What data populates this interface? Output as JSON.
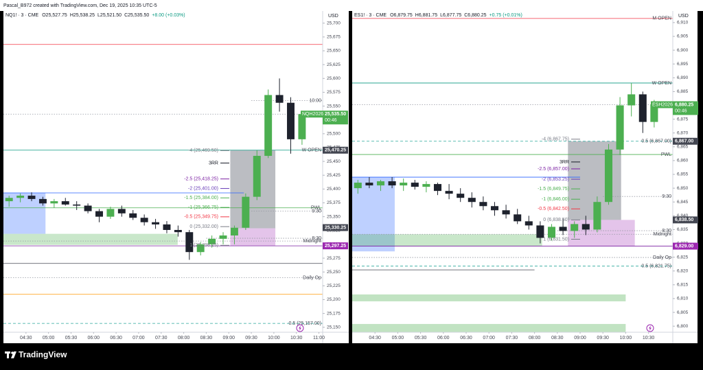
{
  "header": {
    "text": "Pascal_B972 created with TradingView.com, Dec 19, 2025 10:35 UTC-5"
  },
  "logo": {
    "text": "TradingView"
  },
  "chart_data": [
    {
      "type": "candlestick",
      "title": "NQ1! · 3 · CME",
      "legend": [
        "O25,527.75",
        "H25,538.25",
        "L25,521.50",
        "C25,535.50",
        "+8.00 (+0.03%)"
      ],
      "y_unit": "USD",
      "up_color": "#4caf50",
      "down_color": "#1e222d",
      "grid": false,
      "xlim": [
        "04:00",
        "11:05"
      ],
      "xticks": [
        "04:30",
        "05:00",
        "05:30",
        "06:00",
        "06:30",
        "07:00",
        "07:30",
        "08:00",
        "08:30",
        "09:00",
        "09:30",
        "10:00",
        "10:30",
        "11:00"
      ],
      "ylim": [
        25141,
        25722
      ],
      "yticks": [
        {
          "value": 25150,
          "label": "25,150"
        },
        {
          "value": 25175,
          "label": "25,175"
        },
        {
          "value": 25200,
          "label": "25,200"
        },
        {
          "value": 25225,
          "label": "25,225"
        },
        {
          "value": 25250,
          "label": "25,250"
        },
        {
          "value": 25275,
          "label": "25,275"
        },
        {
          "value": 25300,
          "label": "25,300"
        },
        {
          "value": 25325,
          "label": "25,325"
        },
        {
          "value": 25350,
          "label": "25,350"
        },
        {
          "value": 25375,
          "label": "25,375"
        },
        {
          "value": 25400,
          "label": "25,400"
        },
        {
          "value": 25425,
          "label": "25,425"
        },
        {
          "value": 25450,
          "label": "25,450"
        },
        {
          "value": 25475,
          "label": "25,475"
        },
        {
          "value": 25500,
          "label": "25,500"
        },
        {
          "value": 25525,
          "label": "25,525"
        },
        {
          "value": 25550,
          "label": "25,550"
        },
        {
          "value": 25575,
          "label": "25,575"
        },
        {
          "value": 25600,
          "label": "25,600"
        },
        {
          "value": 25625,
          "label": "25,625"
        },
        {
          "value": 25650,
          "label": "25,650"
        },
        {
          "value": 25675,
          "label": "25,675"
        },
        {
          "value": 25700,
          "label": "25,700"
        }
      ],
      "x": [
        "04:00",
        "04:15",
        "04:30",
        "04:45",
        "05:00",
        "05:15",
        "05:30",
        "05:45",
        "06:00",
        "06:15",
        "06:30",
        "06:45",
        "07:00",
        "07:15",
        "07:30",
        "07:45",
        "08:00",
        "08:15",
        "08:30",
        "08:45",
        "09:00",
        "09:15",
        "09:30",
        "09:45",
        "10:00",
        "10:15",
        "10:30"
      ],
      "open": [
        25378,
        25384,
        25388,
        25382,
        25374,
        25378,
        25372,
        25370,
        25360,
        25350,
        25364,
        25356,
        25348,
        25340,
        25336,
        25326,
        25322,
        25286,
        25300,
        25310,
        25316,
        25330,
        25386,
        25460,
        25570,
        25556,
        25490
      ],
      "high": [
        25388,
        25392,
        25394,
        25386,
        25382,
        25384,
        25378,
        25374,
        25364,
        25368,
        25370,
        25362,
        25354,
        25346,
        25342,
        25334,
        25326,
        25304,
        25316,
        25322,
        25334,
        25392,
        25470,
        25580,
        25600,
        25566,
        25540
      ],
      "low": [
        25368,
        25376,
        25378,
        25370,
        25366,
        25370,
        25362,
        25356,
        25340,
        25346,
        25350,
        25344,
        25334,
        25328,
        25320,
        25314,
        25272,
        25280,
        25294,
        25300,
        25300,
        25326,
        25380,
        25456,
        25540,
        25464,
        25480
      ],
      "close": [
        25384,
        25388,
        25382,
        25374,
        25378,
        25372,
        25370,
        25360,
        25350,
        25364,
        25356,
        25348,
        25340,
        25336,
        25326,
        25322,
        25286,
        25300,
        25310,
        25316,
        25330,
        25386,
        25460,
        25570,
        25556,
        25490,
        25535.5
      ],
      "boxes": [
        {
          "from": "04:00",
          "to": "04:56",
          "top": 25393,
          "bottom": 25319,
          "color": "rgba(41,98,255,0.3)"
        },
        {
          "from": "04:00",
          "to": "07:52",
          "top": 25319,
          "bottom": 25299,
          "color": "rgba(76,175,80,0.3)"
        },
        {
          "from": "09:02",
          "to": "10:02",
          "top": 25470.25,
          "bottom": 25329,
          "color": "rgba(120,123,134,0.5)"
        },
        {
          "from": "09:02",
          "to": "10:02",
          "top": 25329,
          "bottom": 25297.25,
          "color": "rgba(206,147,216,0.55)"
        }
      ],
      "levels": [
        {
          "value": 25661.5,
          "color": "#f23645",
          "style": "solid"
        },
        {
          "value": 25560,
          "color": "#9598a1",
          "style": "dotted",
          "label": "10:00",
          "from": "09:30"
        },
        {
          "value": 25535.5,
          "color": "#9598a1",
          "style": "dotted"
        },
        {
          "value": 25470.25,
          "color": "#089981",
          "style": "solid",
          "label": "W OPEN"
        },
        {
          "value": 25393,
          "color": "#2962ff",
          "style": "solid",
          "to": "09:20"
        },
        {
          "value": 25366,
          "color": "#4caf50",
          "style": "solid",
          "label": "PWL"
        },
        {
          "value": 25360,
          "color": "#9598a1",
          "style": "dotted",
          "label": "9:30",
          "from": "09:30"
        },
        {
          "value": 25311,
          "color": "#9598a1",
          "style": "dotted",
          "label": "8:30",
          "from": "08:30"
        },
        {
          "value": 25306,
          "color": "#9598a1",
          "style": "dotted",
          "label": "Midnight"
        },
        {
          "value": 25297.25,
          "color": "#7b1fa2",
          "style": "solid"
        },
        {
          "value": 25265.5,
          "color": "#434651",
          "style": "solid"
        },
        {
          "value": 25239.5,
          "color": "#9598a1",
          "style": "dotted",
          "label": "Daily Op"
        },
        {
          "value": 25209.6,
          "color": "#ff9800",
          "style": "solid"
        },
        {
          "value": 25157,
          "color": "#26a69a",
          "style": "dashed",
          "label": "0.5 (25,157.00)"
        }
      ],
      "fibs": [
        {
          "label": "-4 (25,469.50)",
          "value": 25469.5,
          "color": "#787b86"
        },
        {
          "label": "3RR",
          "value": 25447,
          "color": "#131722"
        },
        {
          "label": "-2.5 (25,418.25)",
          "value": 25418.25,
          "color": "#7b1fa2"
        },
        {
          "label": "-2 (25,401.00)",
          "value": 25401,
          "color": "#673ab7"
        },
        {
          "label": "-1.5 (25,384.00)",
          "value": 25384,
          "color": "#4caf50"
        },
        {
          "label": "-1 (25,366.75)",
          "value": 25366.75,
          "color": "#4caf50"
        },
        {
          "label": "-0.5 (25,349.75)",
          "value": 25349.75,
          "color": "#f23645"
        },
        {
          "label": "0 (25,332.00)",
          "value": 25332,
          "color": "#787b86"
        },
        {
          "label": "1 (25,298.25)",
          "value": 25298.25,
          "color": "#787b86"
        }
      ],
      "tags": [
        {
          "value": 25535.5,
          "label": "25,535.50",
          "color": "#4caf50",
          "symbol": "NQH2026",
          "countdown": "00:46"
        },
        {
          "value": 25470.25,
          "label": "25,470.25",
          "color": "#434651"
        },
        {
          "value": 25330.25,
          "label": "25,330.25",
          "color": "#434651"
        },
        {
          "value": 25297.25,
          "label": "25,297.25",
          "color": "#9c27b0"
        }
      ]
    },
    {
      "type": "candlestick",
      "title": "ES1! · 3 · CME",
      "legend": [
        "O6,879.75",
        "H6,881.75",
        "L6,877.75",
        "C6,880.25",
        "+0.75 (+0.01%)"
      ],
      "y_unit": "USD",
      "up_color": "#4caf50",
      "down_color": "#1e222d",
      "grid": false,
      "xlim": [
        "04:00",
        "11:02"
      ],
      "xticks": [
        "04:30",
        "05:00",
        "05:30",
        "06:00",
        "06:30",
        "07:00",
        "07:30",
        "08:00",
        "08:30",
        "09:00",
        "09:30",
        "10:00",
        "10:30"
      ],
      "ylim": [
        6797.8,
        6914.2
      ],
      "yticks": [
        {
          "value": 6800,
          "label": "6,800"
        },
        {
          "value": 6805,
          "label": "6,805"
        },
        {
          "value": 6810,
          "label": "6,810"
        },
        {
          "value": 6815,
          "label": "6,815"
        },
        {
          "value": 6820,
          "label": "6,820"
        },
        {
          "value": 6825,
          "label": "6,825"
        },
        {
          "value": 6830,
          "label": "6,830"
        },
        {
          "value": 6835,
          "label": "6,835"
        },
        {
          "value": 6840,
          "label": "6,840"
        },
        {
          "value": 6845,
          "label": "6,845"
        },
        {
          "value": 6850,
          "label": "6,850"
        },
        {
          "value": 6855,
          "label": "6,855"
        },
        {
          "value": 6860,
          "label": "6,860"
        },
        {
          "value": 6865,
          "label": "6,865"
        },
        {
          "value": 6870,
          "label": "6,870"
        },
        {
          "value": 6875,
          "label": "6,875"
        },
        {
          "value": 6880,
          "label": "6,880"
        },
        {
          "value": 6885,
          "label": "6,885"
        },
        {
          "value": 6890,
          "label": "6,890"
        },
        {
          "value": 6895,
          "label": "6,895"
        },
        {
          "value": 6900,
          "label": "6,900"
        },
        {
          "value": 6905,
          "label": "6,905"
        },
        {
          "value": 6910,
          "label": "6,910"
        }
      ],
      "x": [
        "04:00",
        "04:15",
        "04:30",
        "04:45",
        "05:00",
        "05:15",
        "05:30",
        "05:45",
        "06:00",
        "06:15",
        "06:30",
        "06:45",
        "07:00",
        "07:15",
        "07:30",
        "07:45",
        "08:00",
        "08:15",
        "08:30",
        "08:45",
        "09:00",
        "09:15",
        "09:30",
        "09:45",
        "10:00",
        "10:15",
        "10:30"
      ],
      "open": [
        6850,
        6852,
        6851,
        6852.5,
        6851,
        6852,
        6850.5,
        6851.5,
        6849,
        6848,
        6846.5,
        6845,
        6843.5,
        6842,
        6840.5,
        6838,
        6836.5,
        6832,
        6836,
        6834.5,
        6837,
        6835,
        6845,
        6864,
        6880,
        6884,
        6874
      ],
      "high": [
        6853,
        6854,
        6853,
        6854,
        6853.5,
        6853,
        6852.5,
        6852,
        6851.5,
        6850,
        6848.5,
        6847,
        6845,
        6844,
        6842.5,
        6840,
        6838,
        6837,
        6839,
        6838,
        6840,
        6847,
        6866,
        6883,
        6888,
        6885,
        6882
      ],
      "low": [
        6848,
        6850,
        6849,
        6850,
        6849,
        6849.5,
        6848.5,
        6847.5,
        6846,
        6845,
        6843,
        6842,
        6840,
        6839,
        6837,
        6835,
        6830,
        6831,
        6833,
        6832,
        6833,
        6834,
        6844,
        6862,
        6876,
        6870,
        6872
      ],
      "close": [
        6852,
        6851,
        6852.5,
        6851,
        6852,
        6850.5,
        6851.5,
        6849,
        6848,
        6846.5,
        6845,
        6843.5,
        6842,
        6840.5,
        6838,
        6836.5,
        6832,
        6836,
        6834.5,
        6837,
        6835,
        6845,
        6864,
        6880,
        6884,
        6874,
        6880.25
      ],
      "boxes": [
        {
          "from": "04:00",
          "to": "04:56",
          "top": 6854,
          "bottom": 6827.1,
          "color": "rgba(41,98,255,0.3)"
        },
        {
          "from": "04:00",
          "to": "08:10",
          "top": 6833.3,
          "bottom": 6829,
          "color": "rgba(76,175,80,0.3)"
        },
        {
          "from": "08:44",
          "to": "09:54",
          "top": 6867,
          "bottom": 6838.5,
          "color": "rgba(120,123,134,0.5)"
        },
        {
          "from": "08:44",
          "to": "10:12",
          "top": 6838.5,
          "bottom": 6829,
          "color": "rgba(206,147,216,0.55)"
        },
        {
          "from": "04:00",
          "to": "10:00",
          "top": 6811.5,
          "bottom": 6809,
          "color": "rgba(76,175,80,0.35)"
        },
        {
          "from": "04:00",
          "to": "10:00",
          "top": 6800.8,
          "bottom": 6797.8,
          "color": "rgba(76,175,80,0.35)"
        }
      ],
      "levels": [
        {
          "value": 6911.5,
          "color": "#f23645",
          "style": "solid",
          "label": "M OPEN"
        },
        {
          "value": 6888.1,
          "color": "#089981",
          "style": "solid",
          "label": "W OPEN"
        },
        {
          "value": 6880.25,
          "color": "#9598a1",
          "style": "dotted"
        },
        {
          "value": 6867,
          "color": "#26a69a",
          "style": "dashed",
          "label": "0.5 (6,867.00)"
        },
        {
          "value": 6862.2,
          "color": "#4caf50",
          "style": "solid",
          "label": "PWL"
        },
        {
          "value": 6854,
          "color": "#2962ff",
          "style": "solid",
          "to": "09:00"
        },
        {
          "value": 6847,
          "color": "#9598a1",
          "style": "dotted",
          "label": "9:30",
          "from": "09:30"
        },
        {
          "value": 6834.6,
          "color": "#9598a1",
          "style": "dotted",
          "label": "8:30",
          "from": "08:30"
        },
        {
          "value": 6833.3,
          "color": "#9598a1",
          "style": "dotted",
          "label": "Midnight"
        },
        {
          "value": 6829,
          "color": "#7b1fa2",
          "style": "solid"
        },
        {
          "value": 6824.9,
          "color": "#9598a1",
          "style": "dotted",
          "label": "Daily Op"
        },
        {
          "value": 6821.75,
          "color": "#26a69a",
          "style": "dashed",
          "label": "0.5 (6,821.75)"
        },
        {
          "value": 6820.4,
          "color": "#434651",
          "style": "solid",
          "to": "08:00"
        }
      ],
      "fibs": [
        {
          "label": "-4 (6,867.75)",
          "value": 6867.75,
          "color": "#787b86"
        },
        {
          "label": "3RR",
          "value": 6859.5,
          "color": "#131722"
        },
        {
          "label": "-2.5 (6,857.00)",
          "value": 6857,
          "color": "#7b1fa2"
        },
        {
          "label": "-2 (6,853.25)",
          "value": 6853.25,
          "color": "#673ab7"
        },
        {
          "label": "-1.5 (6,849.75)",
          "value": 6849.75,
          "color": "#4caf50"
        },
        {
          "label": "-1 (6,846.00)",
          "value": 6846,
          "color": "#4caf50"
        },
        {
          "label": "-0.5 (6,842.50)",
          "value": 6842.5,
          "color": "#f23645"
        },
        {
          "label": "0 (6,838.50)",
          "value": 6838.5,
          "color": "#787b86"
        },
        {
          "label": "1 (6,831.50)",
          "value": 6831.5,
          "color": "#787b86"
        }
      ],
      "tags": [
        {
          "value": 6880.25,
          "label": "6,880.25",
          "color": "#4caf50",
          "symbol": "ESH2026",
          "countdown": "00:46"
        },
        {
          "value": 6867,
          "label": "6,867.00",
          "color": "#434651"
        },
        {
          "value": 6838.5,
          "label": "6,838.50",
          "color": "#434651"
        },
        {
          "value": 6829,
          "label": "6,829.00",
          "color": "#9c27b0"
        }
      ]
    }
  ]
}
